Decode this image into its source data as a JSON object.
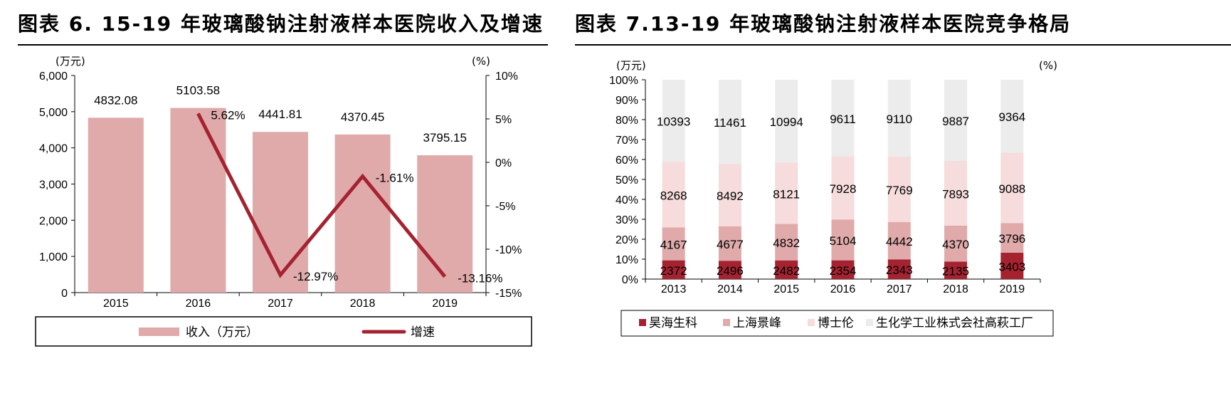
{
  "left": {
    "title": "图表 6. 15-19 年玻璃酸钠注射液样本医院收入及增速",
    "chart_data": {
      "type": "bar+line",
      "categories": [
        "2015",
        "2016",
        "2017",
        "2018",
        "2019"
      ],
      "series": [
        {
          "name": "收入（万元）",
          "type": "bar",
          "axis": "left",
          "values": [
            4832.08,
            5103.58,
            4441.81,
            4370.45,
            3795.15
          ],
          "labels": [
            "4832.08",
            "5103.58",
            "4441.81",
            "4370.45",
            "3795.15"
          ]
        },
        {
          "name": "增速",
          "type": "line",
          "axis": "right",
          "x": [
            "2016",
            "2017",
            "2018",
            "2019"
          ],
          "values": [
            5.62,
            -12.97,
            -1.61,
            -13.16
          ],
          "labels": [
            "5.62%",
            "-12.97%",
            "-1.61%",
            "-13.16%"
          ]
        }
      ],
      "y_left": {
        "unit": "(万元)",
        "ylim": [
          0,
          6000
        ],
        "ticks": [
          "0",
          "1,000",
          "2,000",
          "3,000",
          "4,000",
          "5,000",
          "6,000"
        ]
      },
      "y_right": {
        "unit": "(%)",
        "ylim": [
          -15,
          10
        ],
        "ticks": [
          "-15%",
          "-10%",
          "-5%",
          "0%",
          "5%",
          "10%"
        ]
      },
      "legend_position": "bottom",
      "colors": {
        "bar": "#e0aaab",
        "line": "#a52330"
      }
    }
  },
  "right": {
    "title": "图表 7.13-19 年玻璃酸钠注射液样本医院竞争格局",
    "chart_data": {
      "type": "stacked-bar-100",
      "categories": [
        "2013",
        "2014",
        "2015",
        "2016",
        "2017",
        "2018",
        "2019"
      ],
      "series": [
        {
          "name": "昊海生科",
          "color": "#a52330",
          "values": [
            2372,
            2496,
            2482,
            2354,
            2343,
            2135,
            3403
          ]
        },
        {
          "name": "上海景峰",
          "color": "#e0aaab",
          "values": [
            4167,
            4677,
            4832,
            5104,
            4442,
            4370,
            3796
          ]
        },
        {
          "name": "博士伦",
          "color": "#f6dcdc",
          "values": [
            8268,
            8492,
            8121,
            7928,
            7769,
            7893,
            9088
          ]
        },
        {
          "name": "生化学工业株式会社高萩工厂",
          "color": "#ececec",
          "values": [
            10393,
            11461,
            10994,
            9611,
            9110,
            9887,
            9364
          ]
        }
      ],
      "y_left": {
        "unit": "(万元)",
        "ticks": [
          "0%",
          "10%",
          "20%",
          "30%",
          "40%",
          "50%",
          "60%",
          "70%",
          "80%",
          "90%",
          "100%"
        ]
      },
      "y_right": {
        "unit": "(%)"
      },
      "legend_position": "bottom"
    }
  }
}
